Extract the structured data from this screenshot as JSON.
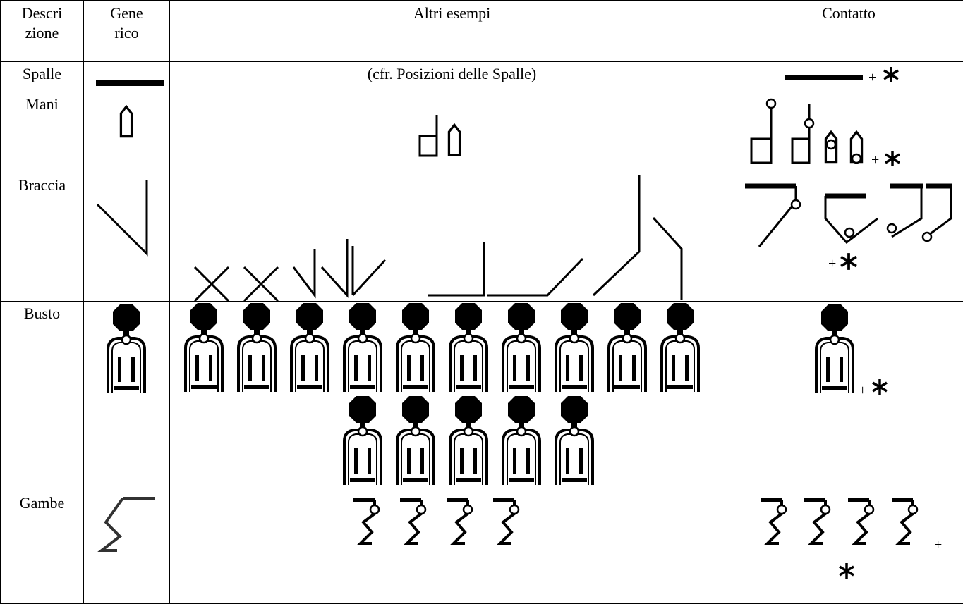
{
  "header": [
    "Descri zione",
    "Gene rico",
    "Altri esempi",
    "Contatto"
  ],
  "rows": [
    {
      "label": "Spalle",
      "example": "(cfr. Posizioni delle Spalle)"
    },
    {
      "label": "Mani"
    },
    {
      "label": "Braccia"
    },
    {
      "label": "Busto"
    },
    {
      "label": "Gambe"
    }
  ],
  "plus": "+"
}
